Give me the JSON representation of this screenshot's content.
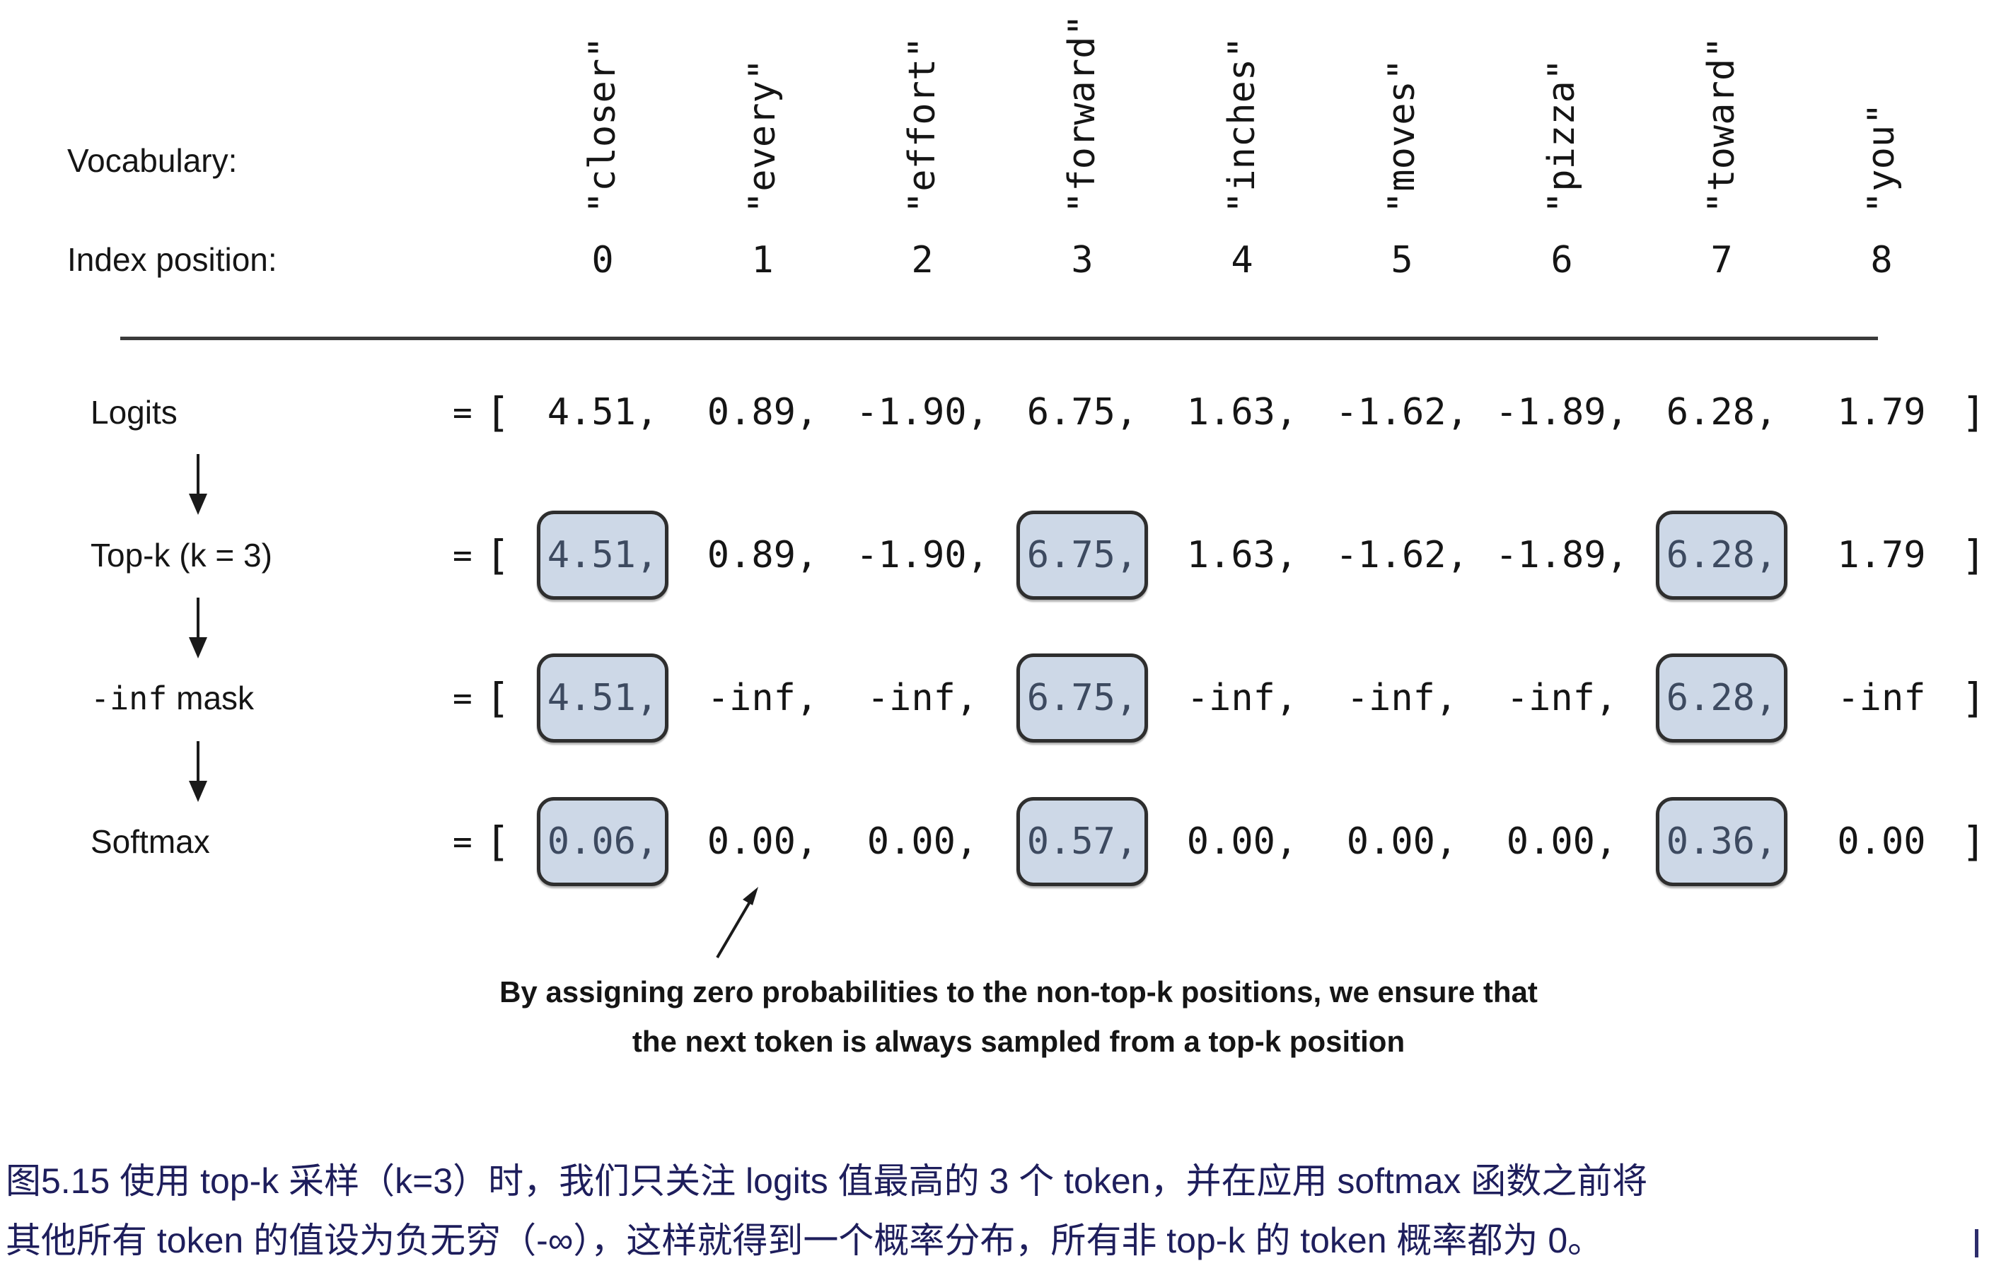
{
  "figure": {
    "vocabulary_label": "Vocabulary:",
    "index_label": "Index position:",
    "tokens": [
      {
        "word": "\"closer\"",
        "index": "0"
      },
      {
        "word": "\"every\"",
        "index": "1"
      },
      {
        "word": "\"effort\"",
        "index": "2"
      },
      {
        "word": "\"forward\"",
        "index": "3"
      },
      {
        "word": "\"inches\"",
        "index": "4"
      },
      {
        "word": "\"moves\"",
        "index": "5"
      },
      {
        "word": "\"pizza\"",
        "index": "6"
      },
      {
        "word": "\"toward\"",
        "index": "7"
      },
      {
        "word": "\"you\"",
        "index": "8"
      }
    ],
    "equals_sign": "=",
    "open_bracket": "[",
    "close_bracket": "]",
    "rows": [
      {
        "label_mono": "",
        "label": "Logits",
        "values": [
          "4.51,",
          "0.89,",
          "-1.90,",
          "6.75,",
          "1.63,",
          "-1.62,",
          "-1.89,",
          "6.28,",
          "1.79"
        ],
        "highlight": []
      },
      {
        "label_mono": "",
        "label": "Top-k (k = 3)",
        "values": [
          "4.51,",
          "0.89,",
          "-1.90,",
          "6.75,",
          "1.63,",
          "-1.62,",
          "-1.89,",
          "6.28,",
          "1.79"
        ],
        "highlight": [
          0,
          3,
          7
        ]
      },
      {
        "label_mono": "-inf",
        "label": " mask",
        "values": [
          "4.51,",
          "-inf,",
          "-inf,",
          "6.75,",
          "-inf,",
          "-inf,",
          "-inf,",
          "6.28,",
          "-inf"
        ],
        "highlight": [
          0,
          3,
          7
        ]
      },
      {
        "label_mono": "",
        "label": "Softmax",
        "values": [
          "0.06,",
          "0.00,",
          "0.00,",
          "0.57,",
          "0.00,",
          "0.00,",
          "0.00,",
          "0.36,",
          "0.00"
        ],
        "highlight": [
          0,
          3,
          7
        ]
      }
    ],
    "annotation": {
      "line1": "By assigning zero probabilities to the non-top-k positions, we ensure that",
      "line2": "the next token is always sampled from a top-k position"
    }
  },
  "caption": {
    "line1": "图5.15 使用 top-k 采样（k=3）时，我们只关注 logits 值最高的 3 个 token，并在应用 softmax 函数之前将",
    "line2": "其他所有 token 的值设为负无穷（-∞），这样就得到一个概率分布，所有非 top-k 的 token 概率都为 0。"
  },
  "colors": {
    "highlight_fill": "#cdd8e7",
    "highlight_border": "#2e2e2e",
    "highlight_text": "#3d4a60",
    "caption_text": "#1e1e5c",
    "text": "#151515"
  }
}
